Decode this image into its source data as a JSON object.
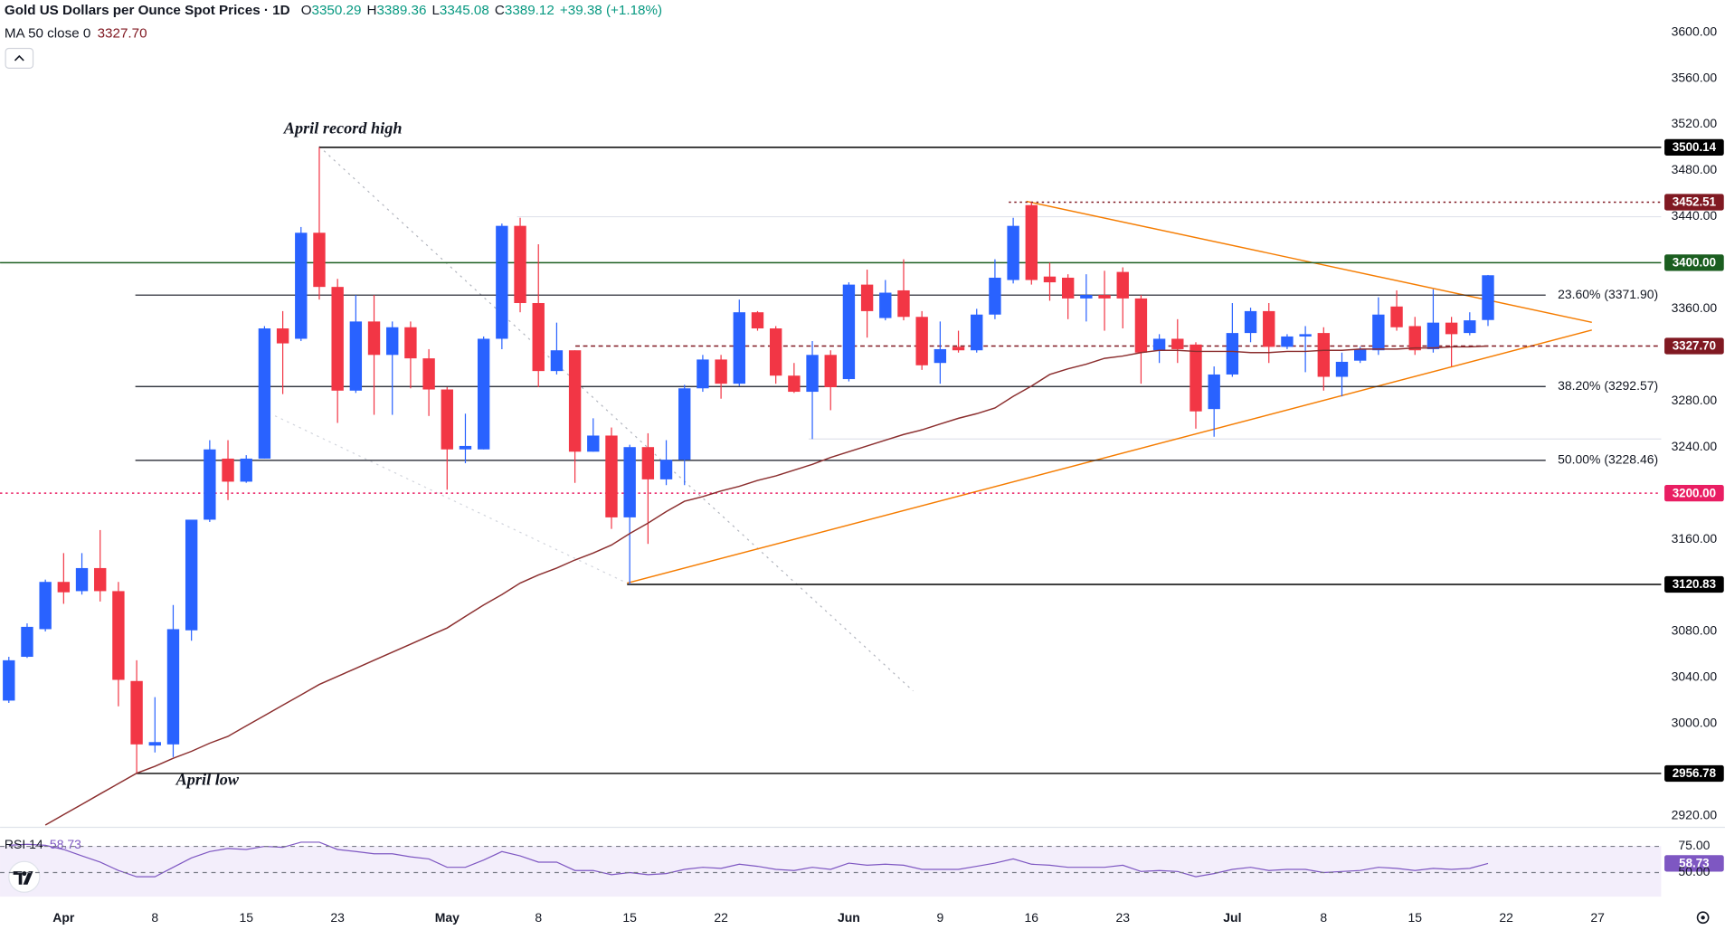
{
  "chart_data": {
    "type": "candlestick",
    "title": "Gold US Dollars per Ounce Spot Prices · 1D",
    "legend_ohlc": [
      {
        "key": "O",
        "value": "3350.29"
      },
      {
        "key": "H",
        "value": "3389.36"
      },
      {
        "key": "L",
        "value": "3345.08"
      },
      {
        "key": "C",
        "value": "3389.12"
      }
    ],
    "change": "+39.38 (+1.18%)",
    "up_color": "#2962ff",
    "down_color": "#f23645",
    "categories": [
      null,
      null,
      null,
      "Apr",
      null,
      null,
      null,
      null,
      "8",
      null,
      null,
      null,
      null,
      "15",
      null,
      null,
      null,
      null,
      "23",
      null,
      null,
      null,
      null,
      null,
      "May",
      null,
      null,
      null,
      null,
      "8",
      null,
      null,
      null,
      null,
      "15",
      null,
      null,
      null,
      null,
      "22",
      null,
      null,
      null,
      null,
      null,
      null,
      "Jun",
      null,
      null,
      null,
      null,
      "9",
      null,
      null,
      null,
      null,
      "16",
      null,
      null,
      null,
      null,
      "23",
      null,
      null,
      null,
      null,
      null,
      "Jul",
      null,
      null,
      null,
      null,
      "8",
      null,
      null,
      null,
      null,
      "15",
      null,
      null,
      null,
      null,
      "22",
      null,
      null,
      null,
      null,
      "27"
    ],
    "open": [
      3020,
      3058,
      3082,
      3123,
      3115,
      3135,
      3115,
      3037,
      2981,
      2982,
      3081,
      3177,
      3230,
      3210,
      3230,
      3343,
      3334,
      3426,
      3379,
      3289,
      3349,
      3320,
      3344,
      3317,
      3290,
      3238,
      3238,
      3334,
      3432,
      3365,
      3306,
      3324,
      3236,
      3250,
      3179,
      3240,
      3212,
      3229,
      3291,
      3316,
      3295,
      3357,
      3343,
      3302,
      3288,
      3320,
      3299,
      3381,
      3352,
      3376,
      3353,
      3313,
      3327,
      3324,
      3355,
      3385,
      3450,
      3388,
      3387,
      3369,
      3372,
      3392,
      3369,
      3324,
      3334,
      3329,
      3273,
      3303,
      3339,
      3358,
      3327,
      3336,
      3339,
      3301,
      3315,
      3324,
      3362,
      3345,
      3325,
      3348,
      3339,
      3350.29,
      null,
      null,
      null,
      null,
      null,
      null
    ],
    "high": [
      3058,
      3087,
      3125,
      3148,
      3148,
      3168,
      3123,
      3055,
      3023,
      3103,
      3177,
      3246,
      3246,
      3233,
      3345,
      3358,
      3431,
      3500.14,
      3386,
      3372,
      3372,
      3349,
      3349,
      3325,
      3292,
      3269,
      3336,
      3434,
      3439,
      3416,
      3348,
      3324,
      3265,
      3257,
      3242,
      3252,
      3246,
      3294,
      3320,
      3320,
      3368,
      3358,
      3345,
      3313,
      3332,
      3324,
      3383,
      3394,
      3385,
      3403,
      3358,
      3349,
      3341,
      3360,
      3403,
      3439,
      3452.51,
      3400,
      3390,
      3390,
      3393,
      3396,
      3372,
      3338,
      3351,
      3331,
      3310,
      3365,
      3361,
      3365,
      3338,
      3345,
      3344,
      3322,
      3327,
      3370,
      3376,
      3353,
      3377,
      3353,
      3357,
      3389.36,
      null,
      null,
      null,
      null,
      null,
      null
    ],
    "low": [
      3018,
      3057,
      3080,
      3104,
      3112,
      3106,
      3015,
      2956.78,
      2975,
      2971,
      3072,
      3175,
      3194,
      3209,
      3230,
      3286,
      3332,
      3368,
      3261,
      3287,
      3268,
      3268,
      3291,
      3267,
      3203,
      3226,
      3238,
      3325,
      3357,
      3292,
      3303,
      3209,
      3236,
      3169,
      3120.83,
      3156,
      3207,
      3207,
      3288,
      3282,
      3293,
      3341,
      3295,
      3287,
      3247,
      3272,
      3297,
      3335,
      3350,
      3350,
      3307,
      3295,
      3322,
      3322,
      3351,
      3382,
      3381,
      3367,
      3351,
      3349,
      3341,
      3343,
      3295,
      3313,
      3313,
      3256,
      3249,
      3301,
      3331,
      3313,
      3325,
      3305,
      3289,
      3284,
      3313,
      3320,
      3341,
      3320,
      3322,
      3310,
      3337,
      3345.08,
      null,
      null,
      null,
      null,
      null,
      null
    ],
    "close": [
      3055,
      3084,
      3123,
      3114,
      3135,
      3115,
      3038,
      2982,
      2984,
      3082,
      3177,
      3238,
      3210,
      3230,
      3343,
      3330,
      3426,
      3379,
      3289,
      3349,
      3320,
      3344,
      3317,
      3290,
      3238,
      3241,
      3334,
      3432,
      3365,
      3306,
      3324,
      3236,
      3250,
      3179,
      3240,
      3212,
      3229,
      3291,
      3316,
      3295,
      3357,
      3343,
      3302,
      3288,
      3320,
      3292,
      3381,
      3358,
      3374,
      3353,
      3311,
      3325,
      3324,
      3355,
      3387,
      3432,
      3385,
      3383,
      3369,
      3372,
      3369,
      3369,
      3322,
      3334,
      3325,
      3271,
      3303,
      3339,
      3358,
      3327,
      3336,
      3338,
      3301,
      3314,
      3325,
      3355,
      3344,
      3324,
      3348,
      3338,
      3350,
      3389.12,
      null,
      null,
      null,
      null,
      null,
      null
    ],
    "ma": {
      "name": "MA 50 close 0",
      "value_label": "3327.70",
      "color": "#8b2e2e",
      "values": [
        null,
        null,
        2912,
        2921,
        2930,
        2939,
        2948,
        2957,
        2963,
        2970,
        2976,
        2983,
        2989,
        2998,
        3007,
        3016,
        3025,
        3034,
        3041,
        3048,
        3055,
        3062,
        3069,
        3076,
        3083,
        3093,
        3103,
        3112,
        3122,
        3129,
        3135,
        3142,
        3148,
        3155,
        3165,
        3174,
        3184,
        3193,
        3197,
        3202,
        3206,
        3211,
        3215,
        3220,
        3225,
        3231,
        3236,
        3241,
        3246,
        3251,
        3255,
        3260,
        3265,
        3269,
        3274,
        3284,
        3293,
        3303,
        3308,
        3312,
        3317,
        3319,
        3322,
        3324,
        3324,
        3323,
        3323,
        3323,
        3322,
        3322,
        3323,
        3323,
        3324,
        3324,
        3325,
        3325,
        3325,
        3326,
        3326,
        3327,
        3327,
        3327.7,
        null,
        null,
        null,
        null,
        null,
        null
      ]
    },
    "ylim": [
      2910,
      3628
    ],
    "yticks": [
      {
        "value": 2920,
        "label": "2920.00"
      },
      {
        "value": 3000,
        "label": "3000.00"
      },
      {
        "value": 3040,
        "label": "3040.00"
      },
      {
        "value": 3080,
        "label": "3080.00"
      },
      {
        "value": 3160,
        "label": "3160.00"
      },
      {
        "value": 3240,
        "label": "3240.00"
      },
      {
        "value": 3280,
        "label": "3280.00"
      },
      {
        "value": 3360,
        "label": "3360.00"
      },
      {
        "value": 3440,
        "label": "3440.00"
      },
      {
        "value": 3480,
        "label": "3480.00"
      },
      {
        "value": 3520,
        "label": "3520.00"
      },
      {
        "value": 3560,
        "label": "3560.00"
      },
      {
        "value": 3600,
        "label": "3600.00"
      }
    ],
    "grid": false,
    "levels": [
      {
        "value": 3500.14,
        "label": "3500.14",
        "color": "#000000",
        "style": "solid"
      },
      {
        "value": 3452.51,
        "label": "3452.51",
        "color": "#801922",
        "style": "dotted"
      },
      {
        "value": 3400,
        "label": "3400.00",
        "color": "#1b5e20",
        "style": "solid"
      },
      {
        "value": 3327.7,
        "label": "3327.70",
        "color": "#801922",
        "style": "dashed"
      },
      {
        "value": 3200,
        "label": "3200.00",
        "color": "#e91e63",
        "style": "dotted"
      },
      {
        "value": 3120.83,
        "label": "3120.83",
        "color": "#000000",
        "style": "solid"
      },
      {
        "value": 2956.78,
        "label": "2956.78",
        "color": "#000000",
        "style": "solid"
      }
    ],
    "fib_levels": [
      {
        "value": 3371.9,
        "label": "23.60% (3371.90)"
      },
      {
        "value": 3292.57,
        "label": "38.20% (3292.57)"
      },
      {
        "value": 3228.46,
        "label": "50.00% (3228.46)"
      }
    ],
    "annotations": [
      "April record high",
      "April low"
    ],
    "rsi": {
      "name": "RSI 14",
      "value_label": "58.73",
      "color": "#7e57c2",
      "ylim": [
        27,
        90
      ],
      "yticks": [
        {
          "value": 75,
          "label": "75.00"
        },
        {
          "value": 50,
          "label": "50.00"
        }
      ],
      "values": [
        76,
        77,
        76,
        72,
        66,
        60,
        52,
        46,
        46,
        55,
        64,
        70,
        73,
        72,
        75,
        74,
        79,
        79,
        72,
        70,
        68,
        68,
        65,
        63,
        55,
        55,
        62,
        70,
        66,
        60,
        60,
        52,
        52,
        48,
        50,
        48,
        49,
        53,
        55,
        54,
        58,
        56,
        53,
        52,
        55,
        53,
        59,
        57,
        58,
        57,
        53,
        53,
        53,
        56,
        59,
        63,
        58,
        57,
        55,
        55,
        55,
        57,
        51,
        52,
        51,
        46,
        49,
        53,
        55,
        52,
        53,
        53,
        50,
        51,
        52,
        55,
        54,
        52,
        54,
        53,
        54,
        58.73,
        null,
        null,
        null,
        null,
        null,
        null
      ]
    }
  }
}
